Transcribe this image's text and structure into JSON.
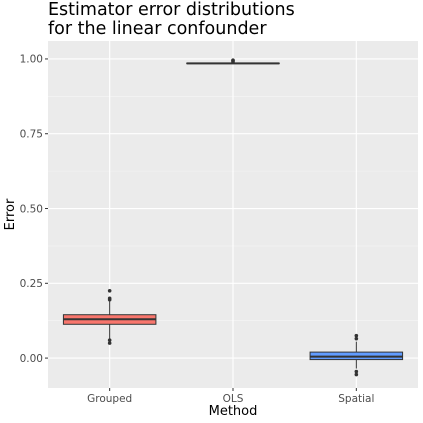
{
  "chart_data": {
    "type": "box",
    "title_lines": [
      "Estimator error distributions",
      "for the linear confounder"
    ],
    "xlabel": "Method",
    "ylabel": "Error",
    "ylim": [
      -0.1,
      1.06
    ],
    "yticks": [
      0.0,
      0.25,
      0.5,
      0.75,
      1.0
    ],
    "ytick_labels": [
      "0.00",
      "0.25",
      "0.50",
      "0.75",
      "1.00"
    ],
    "grid": true,
    "legend": "none",
    "categories": [
      "Grouped",
      "OLS",
      "Spatial"
    ],
    "boxes": [
      {
        "category": "Grouped",
        "q1": 0.113,
        "median": 0.13,
        "q3": 0.145,
        "whisker_low": 0.065,
        "whisker_high": 0.19,
        "outliers": [
          0.225,
          0.2,
          0.195,
          0.06,
          0.05
        ],
        "fill": "#f8766d"
      },
      {
        "category": "OLS",
        "q1": 0.985,
        "median": 0.985,
        "q3": 0.986,
        "whisker_low": 0.985,
        "whisker_high": 0.987,
        "outliers": [
          0.99,
          0.994,
          0.996
        ],
        "fill": "#00ba38"
      },
      {
        "category": "Spatial",
        "q1": -0.005,
        "median": 0.005,
        "q3": 0.02,
        "whisker_low": -0.035,
        "whisker_high": 0.055,
        "outliers": [
          0.075,
          0.065,
          -0.045,
          -0.055
        ],
        "fill": "#619cff"
      }
    ]
  }
}
